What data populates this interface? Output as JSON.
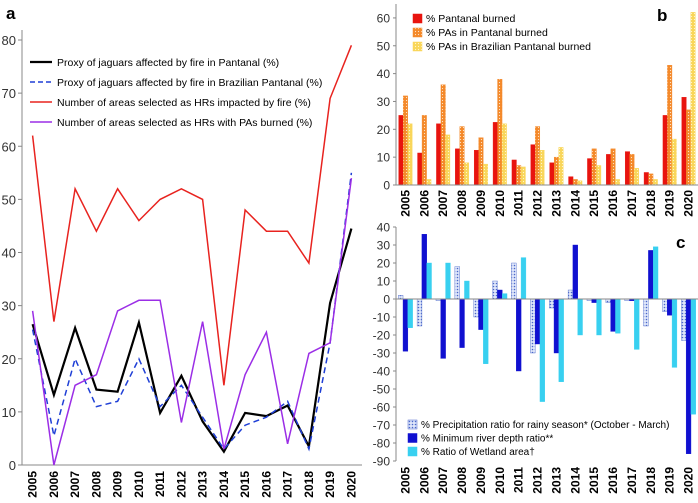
{
  "chart_data": [
    {
      "panel": "a",
      "type": "line",
      "x": [
        2005,
        2006,
        2007,
        2008,
        2009,
        2010,
        2011,
        2012,
        2013,
        2014,
        2015,
        2016,
        2017,
        2018,
        2019,
        2020
      ],
      "ylim": [
        0,
        80
      ],
      "yticks": [
        0,
        10,
        20,
        30,
        40,
        50,
        60,
        70,
        80
      ],
      "legend_position": "top-left",
      "series": [
        {
          "name": "Proxy of jaguars affected by fire in Pantanal (%)",
          "color": "#000000",
          "dash": "solid",
          "values": [
            26.5,
            13.2,
            25.8,
            14.2,
            13.8,
            26.8,
            9.8,
            16.8,
            8.2,
            2.5,
            9.8,
            9.2,
            11.2,
            3.5,
            30.5,
            44.5
          ]
        },
        {
          "name": "Proxy of jaguars affected by fire in Brazilian Pantanal (%)",
          "color": "#1f3fd6",
          "dash": "dashed",
          "values": [
            25.5,
            5.5,
            20.0,
            11.0,
            12.0,
            20.0,
            11.0,
            15.0,
            9.0,
            3.0,
            7.5,
            9.0,
            12.0,
            3.0,
            23.0,
            55.0
          ]
        },
        {
          "name": "Number of areas selected as HRs impacted by fire (%)",
          "color": "#e8231f",
          "dash": "solid",
          "values": [
            62,
            27,
            52,
            44,
            52,
            46,
            50,
            52,
            50,
            15,
            48,
            44,
            44,
            38,
            69,
            79
          ]
        },
        {
          "name": "Number of areas selected as HRs with PAs burned (%)",
          "color": "#9b2ee6",
          "dash": "solid",
          "values": [
            29,
            0,
            15,
            17,
            29,
            31,
            31,
            8,
            27,
            3,
            17,
            25,
            4,
            21,
            23,
            54
          ]
        }
      ]
    },
    {
      "panel": "b",
      "type": "bar",
      "categories": [
        "2005",
        "2006",
        "2007",
        "2008",
        "2009",
        "2010",
        "2011",
        "2012",
        "2013",
        "2014",
        "2015",
        "2016",
        "2017",
        "2018",
        "2019",
        "2020"
      ],
      "ylim": [
        0,
        65
      ],
      "yticks": [
        0,
        10,
        20,
        30,
        40,
        50,
        60
      ],
      "legend_position": "top-left",
      "series": [
        {
          "name": "% Pantanal burned",
          "color": "#e8140f",
          "pattern": "solid",
          "values": [
            25,
            11.5,
            22,
            13,
            12.5,
            22.5,
            9,
            14.5,
            8,
            3,
            9.5,
            11,
            12,
            4.5,
            25,
            31.5
          ]
        },
        {
          "name": "% PAs in Pantanal burned",
          "color": "#f4892a",
          "pattern": "dots",
          "values": [
            32,
            25,
            36,
            21,
            17,
            38,
            7,
            21,
            10,
            2,
            13,
            13,
            11,
            4,
            43,
            27
          ]
        },
        {
          "name": "% PAs in Brazilian Pantanal burned",
          "color": "#f9d65a",
          "pattern": "dots",
          "values": [
            22,
            2,
            18,
            8,
            7.5,
            22,
            6.5,
            12.5,
            13.5,
            1.5,
            7,
            2,
            6,
            2,
            16.5,
            62
          ]
        }
      ]
    },
    {
      "panel": "c",
      "type": "bar",
      "categories": [
        "2005",
        "2006",
        "2007",
        "2008",
        "2009",
        "2010",
        "2011",
        "2012",
        "2013",
        "2014",
        "2015",
        "2016",
        "2017",
        "2018",
        "2019",
        "2020"
      ],
      "ylim": [
        -90,
        40
      ],
      "yticks": [
        -90,
        -80,
        -70,
        -60,
        -50,
        -40,
        -30,
        -20,
        -10,
        0,
        10,
        20,
        30,
        40
      ],
      "legend_position": "bottom-left",
      "series": [
        {
          "name": "% Precipitation ratio for rainy season* (October - March)",
          "color": "#4a67c9",
          "pattern": "dots",
          "values": [
            2,
            -15,
            -1,
            18,
            -10,
            10,
            20,
            -30,
            -5,
            5,
            -1,
            -2,
            -1,
            -15,
            -7,
            -23
          ]
        },
        {
          "name": "% Minimum river depth ratio**",
          "color": "#1010d0",
          "pattern": "solid",
          "values": [
            -29,
            36,
            -33,
            -27,
            -17,
            5,
            -40,
            -25,
            -30,
            30,
            -2,
            -18,
            -1,
            27,
            -9,
            -86
          ]
        },
        {
          "name": "% Ratio of Wetland area†",
          "color": "#38d0f0",
          "pattern": "solid",
          "values": [
            -16,
            20,
            20,
            10,
            -36,
            3,
            23,
            -57,
            -46,
            -20,
            -20,
            -19,
            -28,
            29,
            -38,
            -64
          ]
        }
      ]
    }
  ],
  "panel_labels": [
    "a",
    "b",
    "c"
  ]
}
